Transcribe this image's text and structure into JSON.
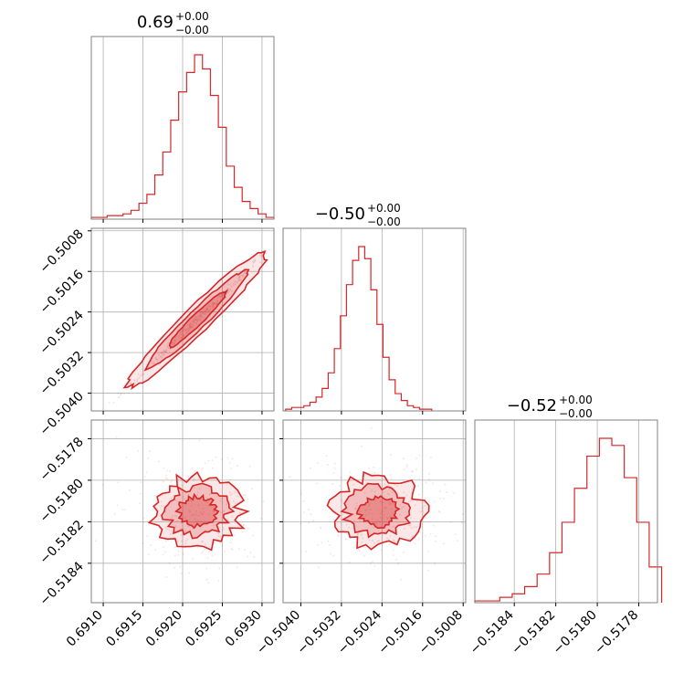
{
  "chart_data": {
    "type": "corner",
    "line_color": "#d62728",
    "fill_color": "#f2a7a8",
    "grid": true,
    "parameters": [
      {
        "title": "0.69",
        "title_sup": "+0.00",
        "title_sub": "−0.00",
        "range": [
          0.69085,
          0.69315
        ],
        "ticks": [
          0.691,
          0.6915,
          0.692,
          0.6925,
          0.693
        ],
        "tick_labels": [
          "0.6910",
          "0.6915",
          "0.6920",
          "0.6925",
          "0.6930"
        ],
        "hist": [
          {
            "x": 0.6909,
            "c": 1
          },
          {
            "x": 0.691,
            "c": 1
          },
          {
            "x": 0.6911,
            "c": 2
          },
          {
            "x": 0.6912,
            "c": 2
          },
          {
            "x": 0.6913,
            "c": 3
          },
          {
            "x": 0.6914,
            "c": 5
          },
          {
            "x": 0.6915,
            "c": 9
          },
          {
            "x": 0.6916,
            "c": 14
          },
          {
            "x": 0.6917,
            "c": 25
          },
          {
            "x": 0.6918,
            "c": 38
          },
          {
            "x": 0.6919,
            "c": 56
          },
          {
            "x": 0.692,
            "c": 72
          },
          {
            "x": 0.6921,
            "c": 83
          },
          {
            "x": 0.6922,
            "c": 93
          },
          {
            "x": 0.6923,
            "c": 85
          },
          {
            "x": 0.6924,
            "c": 70
          },
          {
            "x": 0.6925,
            "c": 52
          },
          {
            "x": 0.6926,
            "c": 30
          },
          {
            "x": 0.6927,
            "c": 18
          },
          {
            "x": 0.6928,
            "c": 10
          },
          {
            "x": 0.6929,
            "c": 6
          },
          {
            "x": 0.693,
            "c": 3
          },
          {
            "x": 0.6931,
            "c": 1
          }
        ]
      },
      {
        "title": "−0.50",
        "title_sup": "+0.00",
        "title_sub": "−0.00",
        "range": [
          -0.50435,
          -0.50075
        ],
        "ticks": [
          -0.504,
          -0.5032,
          -0.5024,
          -0.5016,
          -0.5008
        ],
        "tick_labels": [
          "−0.5040",
          "−0.5032",
          "−0.5024",
          "−0.5016",
          "−0.5008"
        ],
        "hist": [
          {
            "x": -0.50424,
            "c": 1
          },
          {
            "x": -0.50412,
            "c": 2
          },
          {
            "x": -0.504,
            "c": 2
          },
          {
            "x": -0.50388,
            "c": 3
          },
          {
            "x": -0.50376,
            "c": 5
          },
          {
            "x": -0.50364,
            "c": 8
          },
          {
            "x": -0.50352,
            "c": 13
          },
          {
            "x": -0.5034,
            "c": 22
          },
          {
            "x": -0.50328,
            "c": 36
          },
          {
            "x": -0.50316,
            "c": 55
          },
          {
            "x": -0.50304,
            "c": 73
          },
          {
            "x": -0.50292,
            "c": 87
          },
          {
            "x": -0.5028,
            "c": 95
          },
          {
            "x": -0.50268,
            "c": 88
          },
          {
            "x": -0.50256,
            "c": 70
          },
          {
            "x": -0.50244,
            "c": 50
          },
          {
            "x": -0.50232,
            "c": 31
          },
          {
            "x": -0.5022,
            "c": 18
          },
          {
            "x": -0.50208,
            "c": 10
          },
          {
            "x": -0.50196,
            "c": 6
          },
          {
            "x": -0.50184,
            "c": 3
          },
          {
            "x": -0.50172,
            "c": 2
          },
          {
            "x": -0.5016,
            "c": 1
          },
          {
            "x": -0.50148,
            "c": 1
          }
        ]
      },
      {
        "title": "−0.52",
        "title_sup": "+0.00",
        "title_sub": "−0.00",
        "range": [
          -0.51859,
          -0.51771
        ],
        "ticks": [
          -0.5184,
          -0.5182,
          -0.518,
          -0.5178
        ],
        "tick_labels": [
          "−0.5184",
          "−0.5182",
          "−0.5180",
          "−0.5178"
        ],
        "hist": [
          {
            "x": -0.51856,
            "c": 1
          },
          {
            "x": -0.5185,
            "c": 1
          },
          {
            "x": -0.51844,
            "c": 3
          },
          {
            "x": -0.51838,
            "c": 5
          },
          {
            "x": -0.51832,
            "c": 9
          },
          {
            "x": -0.51826,
            "c": 16
          },
          {
            "x": -0.5182,
            "c": 28
          },
          {
            "x": -0.51814,
            "c": 45
          },
          {
            "x": -0.51808,
            "c": 64
          },
          {
            "x": -0.51802,
            "c": 82
          },
          {
            "x": -0.51796,
            "c": 92
          },
          {
            "x": -0.5179,
            "c": 88
          },
          {
            "x": -0.51784,
            "c": 70
          },
          {
            "x": -0.51778,
            "c": 45
          },
          {
            "x": -0.51772,
            "c": 20
          }
        ]
      }
    ],
    "correlations": {
      "1-0": 0.97,
      "2-0": 0.0,
      "2-1": 0.0
    }
  }
}
